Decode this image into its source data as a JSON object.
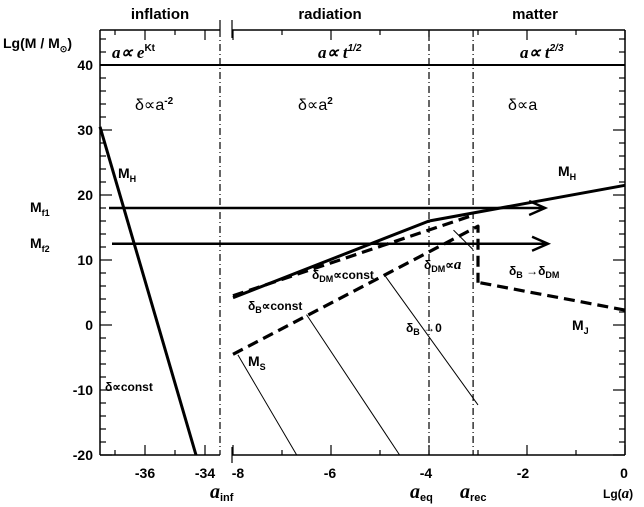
{
  "chart_data": {
    "type": "line",
    "xlabel": {
      "prefix": "Lg(",
      "var": "a",
      "suffix": ")"
    },
    "ylabel": {
      "text": "Lg(M / M",
      "sub": "⊙",
      "close": ")"
    },
    "xlim_inflation": [
      -37.5,
      -33.5
    ],
    "xlim_main": [
      -8.2,
      0
    ],
    "ylim": [
      -20,
      45
    ],
    "grid": false,
    "x_ticks_inflation": [
      "-36",
      "-34"
    ],
    "x_ticks_main": [
      "-8",
      "-6",
      "-4",
      "-2",
      "0"
    ],
    "y_ticks": [
      "40",
      "30",
      "20",
      "10",
      "0",
      "-10",
      "-20"
    ],
    "eras": [
      "inflation",
      "radiation",
      "matter"
    ],
    "growth_laws": [
      {
        "base": "a∝ e",
        "sup": "Kt"
      },
      {
        "base": "a∝ t",
        "sup": "1/2"
      },
      {
        "base": "a∝ t",
        "sup": "2/3"
      }
    ],
    "delta_laws": [
      {
        "base": "δ∝a",
        "sup": "-2"
      },
      {
        "base": "δ∝a",
        "sup": "2"
      },
      {
        "base": "δ∝a",
        "sup": ""
      }
    ],
    "markers": [
      {
        "var": "a",
        "sub": "inf",
        "x": -33.5
      },
      {
        "var": "a",
        "sub": "eq",
        "x": -4
      },
      {
        "var": "a",
        "sub": "rec",
        "x": -3.1
      }
    ],
    "series": [
      {
        "name": "M_H",
        "style": "solid-thick",
        "segment": "inflation",
        "points": [
          [
            -37.5,
            30.5
          ],
          [
            -34.3,
            -20
          ]
        ]
      },
      {
        "name": "M_H",
        "style": "solid-thick",
        "segment": "main",
        "points": [
          [
            -8,
            4.2
          ],
          [
            -4,
            16
          ],
          [
            0,
            21.5
          ]
        ]
      },
      {
        "name": "",
        "style": "dashed-thick",
        "segment": "main",
        "points": [
          [
            -8,
            4.5
          ],
          [
            -3.1,
            16.9
          ]
        ]
      },
      {
        "name": "M_S",
        "style": "dashed-thick",
        "segment": "main",
        "points": [
          [
            -8,
            -4.5
          ],
          [
            -3.0,
            15.2
          ],
          [
            -3.0,
            6.5
          ]
        ]
      },
      {
        "name": "M_J",
        "style": "dashed-thick",
        "segment": "main",
        "points": [
          [
            -2.95,
            6.5
          ],
          [
            0,
            2.3
          ]
        ]
      },
      {
        "name": "",
        "style": "thin",
        "segment": "main",
        "points": [
          [
            -7.9,
            -4.6
          ],
          [
            -6.7,
            -20
          ]
        ]
      },
      {
        "name": "",
        "style": "thin",
        "segment": "main",
        "points": [
          [
            -6.5,
            1.6
          ],
          [
            -4.6,
            -20
          ]
        ]
      },
      {
        "name": "",
        "style": "thin",
        "segment": "main",
        "points": [
          [
            -4.9,
            7.6
          ],
          [
            -3.0,
            -12.3
          ]
        ]
      },
      {
        "name": "",
        "style": "thin",
        "segment": "main",
        "points": [
          [
            -3.5,
            14.6
          ],
          [
            -3.1,
            11.6
          ]
        ]
      }
    ],
    "horizon_line": 40,
    "arrows": [
      {
        "label": "M",
        "sub": "f1",
        "y": 18,
        "from": -37.2,
        "to": -1.63
      },
      {
        "label": "M",
        "sub": "f2",
        "y": 12.5,
        "from": -37.1,
        "to": -1.57
      }
    ],
    "annotations": {
      "mh_left": {
        "text": "M",
        "sub": "H"
      },
      "mh_right": {
        "text": "M",
        "sub": "H"
      },
      "dm_const": {
        "a": "δ",
        "sub": "DM",
        "b": "∝const"
      },
      "b_const": {
        "a": "δ",
        "sub": "B",
        "b": "∝const"
      },
      "b_zero": {
        "a": "δ",
        "sub": "B",
        "b": " →0"
      },
      "dm_a": {
        "a": "δ",
        "sub": "DM",
        "b": "∝",
        "var": "a"
      },
      "b_to_dm": {
        "a": "δ",
        "sub": "B",
        "b": " →δ",
        "sub2": "DM"
      },
      "mj": {
        "text": "M",
        "sub": "J"
      },
      "ms": {
        "text": "M",
        "sub": "S"
      },
      "const": {
        "text": "δ∝const"
      }
    }
  }
}
